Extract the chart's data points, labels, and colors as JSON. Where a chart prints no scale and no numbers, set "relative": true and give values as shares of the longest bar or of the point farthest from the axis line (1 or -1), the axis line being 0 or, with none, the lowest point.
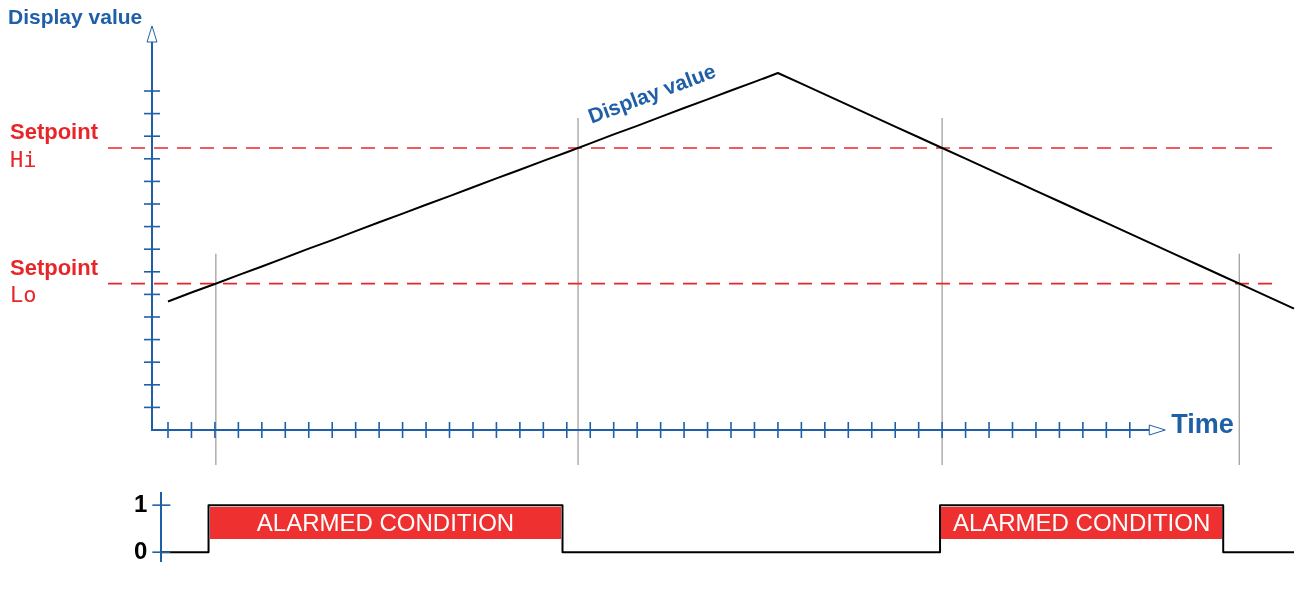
{
  "chart_data": [
    {
      "type": "line",
      "relative": true,
      "ylabel": "Display value",
      "xlabel": "Time",
      "tick_labels": false,
      "grid": false,
      "marker": "none",
      "line_style": "solid",
      "categories": [
        null,
        null,
        null,
        null,
        null,
        null,
        null,
        null,
        null,
        null,
        null,
        null,
        null,
        null,
        null,
        null,
        null,
        null,
        null,
        null,
        null,
        null,
        null,
        null,
        null,
        null,
        null,
        null,
        null,
        null,
        null,
        null,
        null,
        null,
        null,
        null,
        null,
        null,
        null,
        null,
        null,
        null,
        null,
        null,
        null,
        null,
        null,
        null,
        null
      ],
      "series": [
        {
          "name": "Display value",
          "color": "#000000",
          "values": [
            0.36,
            0.385,
            0.409,
            0.434,
            0.458,
            0.483,
            0.508,
            0.532,
            0.557,
            0.582,
            0.606,
            0.631,
            0.655,
            0.68,
            0.705,
            0.729,
            0.754,
            0.778,
            0.803,
            0.828,
            0.852,
            0.877,
            0.902,
            0.926,
            0.951,
            0.975,
            1,
            0.97,
            0.94,
            0.91,
            0.88,
            0.85,
            0.82,
            0.79,
            0.76,
            0.73,
            0.7,
            0.67,
            0.64,
            0.61,
            0.58,
            0.55,
            0.52,
            0.49,
            0.46,
            0.43,
            0.4,
            0.37,
            0.34
          ]
        }
      ],
      "ref_lines": [
        {
          "axis": "y",
          "value": 0.79,
          "label": "Setpoint\nHi",
          "color": "#e8262a",
          "line_style": "dashed"
        },
        {
          "axis": "y",
          "value": 0.41,
          "label": "Setpoint\nLo",
          "color": "#e8262a",
          "line_style": "dashed"
        }
      ]
    },
    {
      "type": "step",
      "tick_labels": "y",
      "grid": false,
      "marker": "none",
      "line_style": "solid",
      "categories": [
        null,
        null,
        null,
        null,
        null,
        null,
        null,
        null,
        null,
        null,
        null,
        null,
        null,
        null,
        null,
        null,
        null,
        null,
        null,
        null,
        null,
        null,
        null,
        null,
        null,
        null,
        null,
        null,
        null,
        null,
        null,
        null,
        null,
        null,
        null,
        null,
        null,
        null,
        null,
        null,
        null,
        null,
        null,
        null,
        null,
        null,
        null,
        null,
        null
      ],
      "ylim": [
        -0.2,
        1.25
      ],
      "yticks": [
        0,
        1
      ],
      "series": [
        {
          "color": "#000000",
          "values": [
            0,
            0,
            1,
            1,
            1,
            1,
            1,
            1,
            1,
            1,
            1,
            1,
            1,
            1,
            1,
            1,
            1,
            0,
            0,
            0,
            0,
            0,
            0,
            0,
            0,
            0,
            0,
            0,
            0,
            0,
            0,
            0,
            0,
            1,
            1,
            1,
            1,
            1,
            1,
            1,
            1,
            1,
            1,
            1,
            1,
            0,
            0,
            0,
            0
          ]
        }
      ],
      "annotations": [
        "ALARMED CONDITION",
        "ALARMED CONDITION"
      ]
    }
  ]
}
